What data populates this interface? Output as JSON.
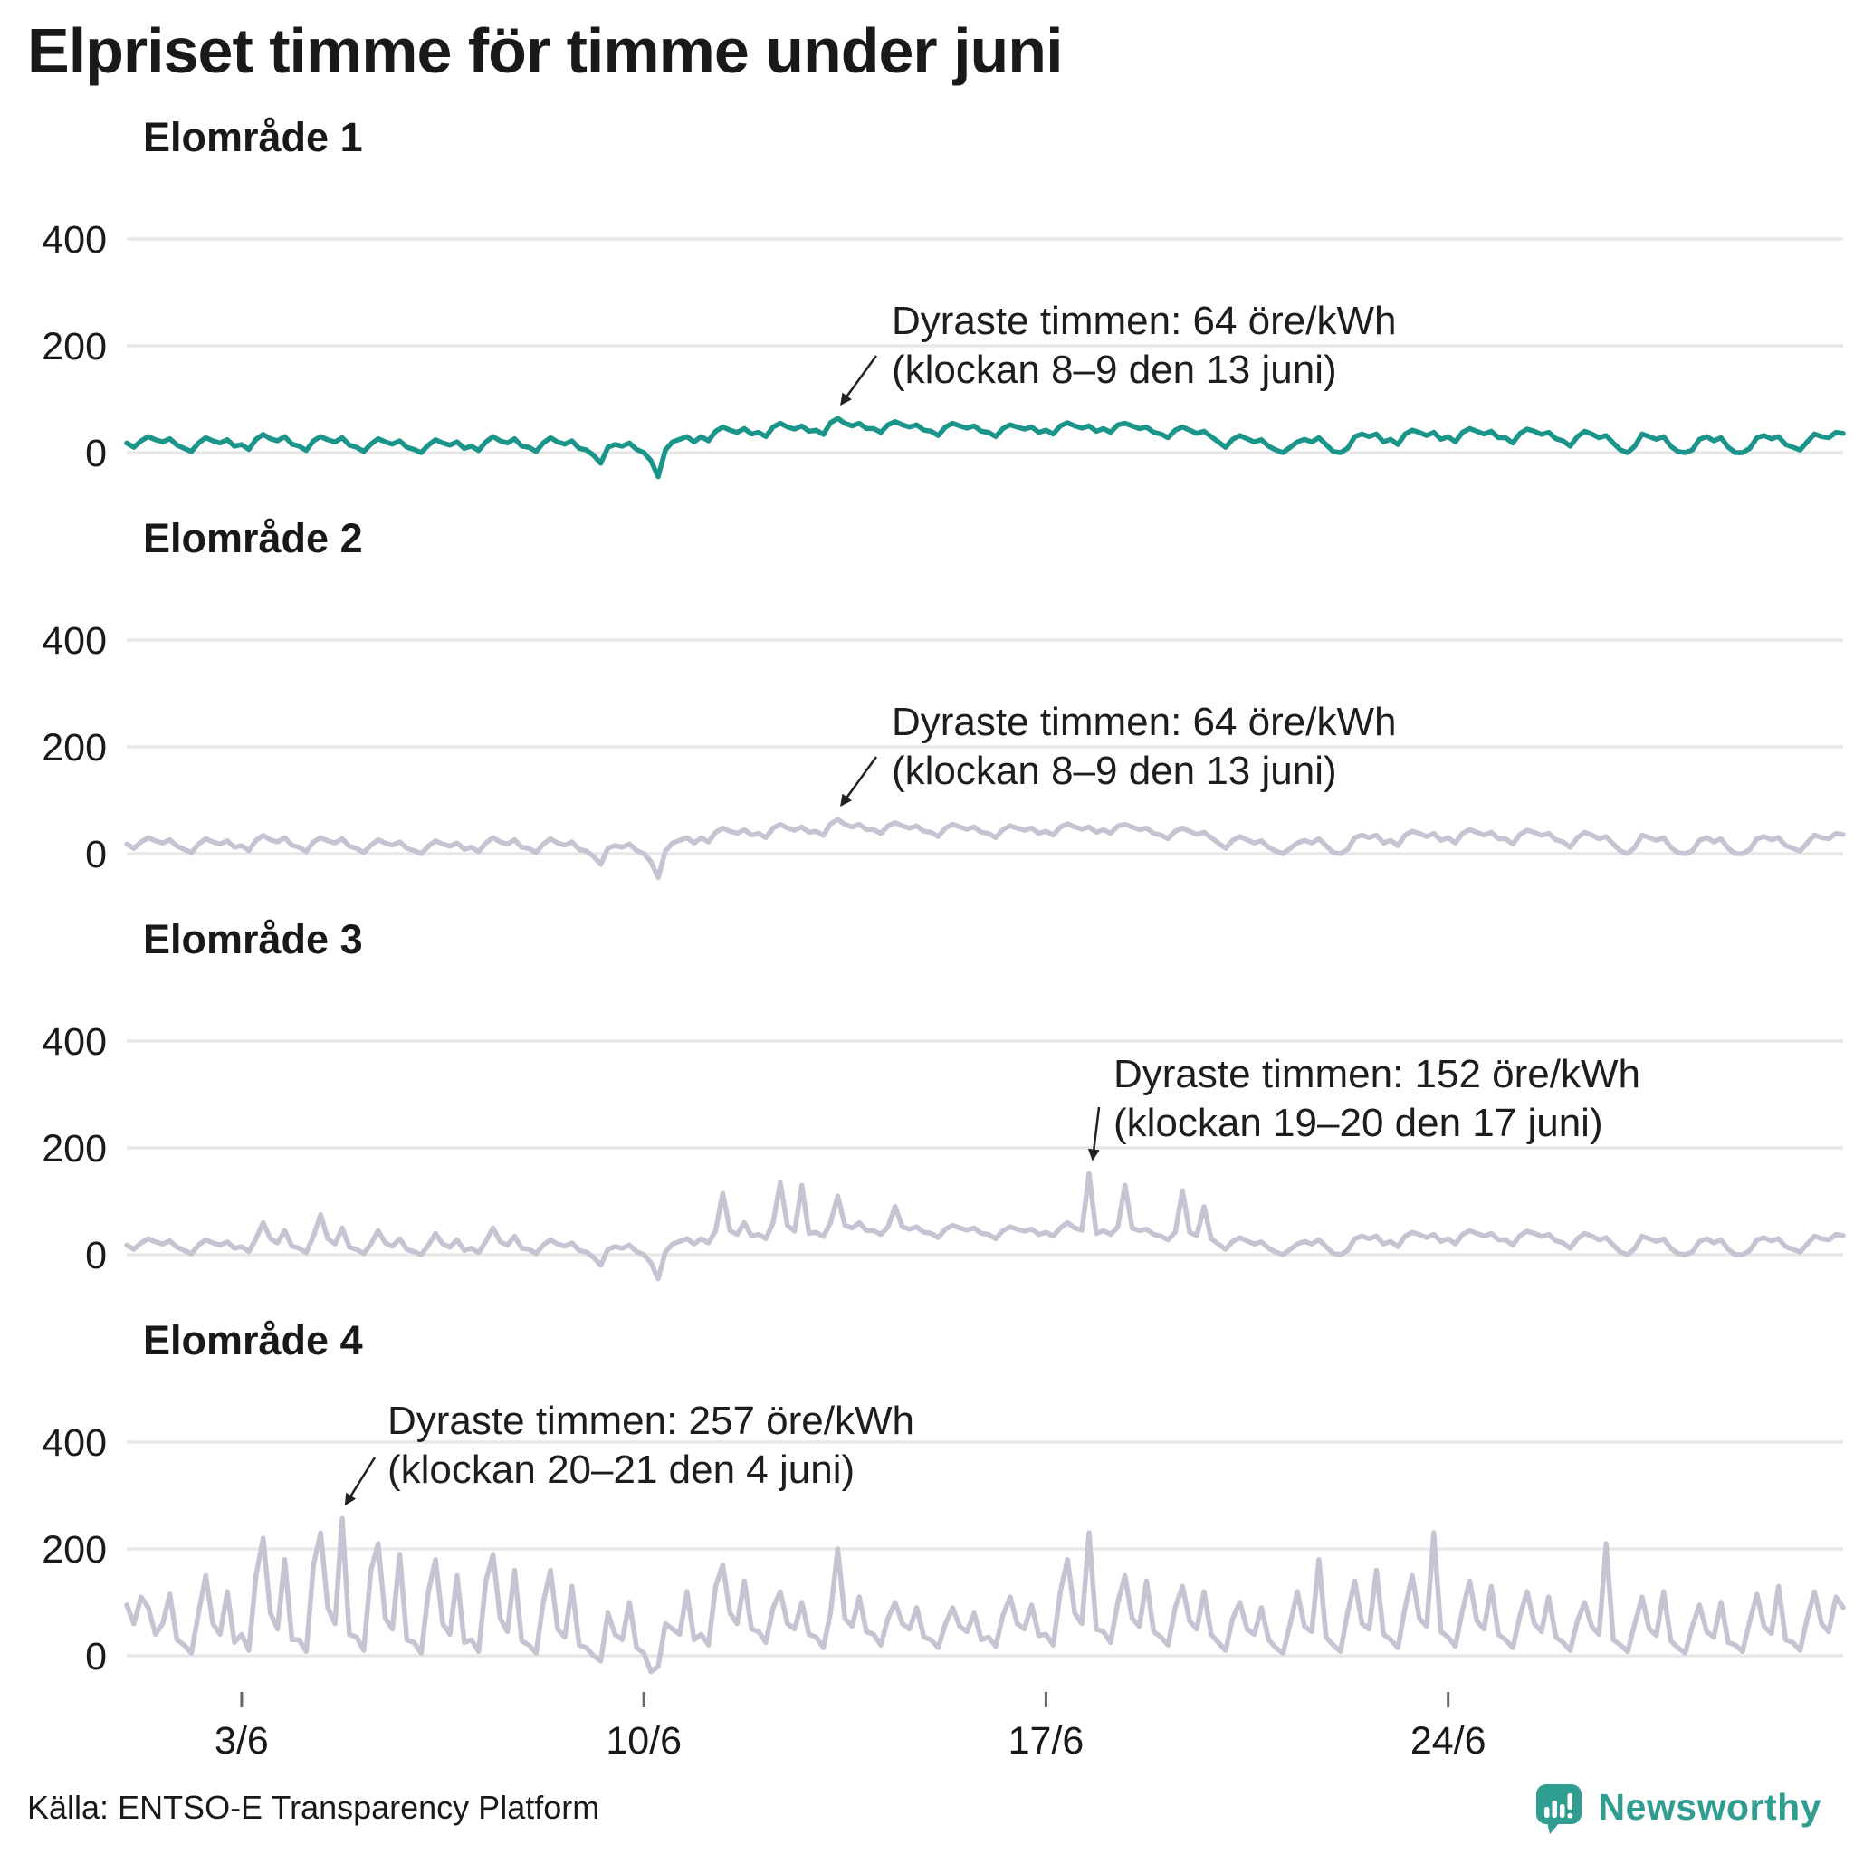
{
  "title": "Elpriset timme för timme under juni",
  "footer": {
    "source": "Källa: ENTSO-E Transparency Platform",
    "brand": "Newsworthy"
  },
  "colors": {
    "area1_line": "#1b948a",
    "other_line": "#c6c4d3",
    "grid": "#e8e8e8",
    "text": "#191919",
    "annotation": "#1d1d1d",
    "arrow": "#222222",
    "brand_teal": "#2f9d90",
    "tick": "#666666"
  },
  "chart_data": [
    {
      "type": "line",
      "title": "Elområde 1",
      "unit": "öre/kWh",
      "x_range": "1 juni – 30 juni, timvärden",
      "points_per_day": 8,
      "yticks": [
        "400",
        "200",
        "0"
      ],
      "ylim": [
        -60,
        460
      ],
      "xticks": [
        {
          "label": "3/6",
          "day": 3
        },
        {
          "label": "10/6",
          "day": 10
        },
        {
          "label": "17/6",
          "day": 17
        },
        {
          "label": "24/6",
          "day": 24
        }
      ],
      "annotation": {
        "line1": "Dyraste timmen: 64 öre/kWh",
        "line2": "(klockan 8–9 den 13 juni)",
        "max_value": 64
      },
      "values": [
        18,
        10,
        22,
        30,
        24,
        20,
        26,
        14,
        8,
        2,
        18,
        28,
        22,
        18,
        24,
        12,
        15,
        6,
        25,
        34,
        26,
        22,
        30,
        16,
        12,
        4,
        22,
        30,
        24,
        20,
        28,
        14,
        10,
        2,
        16,
        26,
        20,
        16,
        22,
        10,
        6,
        0,
        14,
        24,
        18,
        14,
        20,
        8,
        12,
        4,
        20,
        30,
        22,
        18,
        26,
        12,
        10,
        2,
        18,
        28,
        20,
        16,
        22,
        8,
        5,
        -5,
        -20,
        10,
        15,
        12,
        18,
        6,
        0,
        -15,
        -45,
        5,
        20,
        25,
        30,
        20,
        30,
        22,
        40,
        48,
        42,
        38,
        45,
        35,
        38,
        30,
        48,
        55,
        48,
        44,
        50,
        40,
        42,
        34,
        56,
        64,
        55,
        50,
        55,
        45,
        45,
        38,
        52,
        58,
        52,
        48,
        52,
        42,
        40,
        32,
        48,
        55,
        50,
        46,
        50,
        40,
        38,
        30,
        45,
        52,
        48,
        44,
        48,
        38,
        42,
        35,
        50,
        56,
        50,
        46,
        50,
        40,
        45,
        38,
        52,
        55,
        50,
        45,
        48,
        38,
        35,
        28,
        42,
        48,
        42,
        36,
        40,
        30,
        20,
        10,
        25,
        32,
        26,
        20,
        24,
        12,
        5,
        0,
        10,
        20,
        25,
        20,
        28,
        15,
        2,
        0,
        8,
        30,
        35,
        30,
        35,
        20,
        25,
        15,
        35,
        42,
        38,
        32,
        38,
        25,
        30,
        20,
        38,
        45,
        40,
        35,
        40,
        28,
        28,
        18,
        36,
        44,
        40,
        34,
        38,
        26,
        22,
        12,
        30,
        40,
        35,
        28,
        32,
        18,
        5,
        0,
        12,
        35,
        30,
        25,
        30,
        12,
        2,
        0,
        5,
        25,
        30,
        22,
        28,
        10,
        0,
        0,
        8,
        28,
        32,
        26,
        30,
        15,
        10,
        5,
        20,
        35,
        30,
        28,
        38,
        36
      ]
    },
    {
      "type": "line",
      "title": "Elområde 2",
      "unit": "öre/kWh",
      "x_range": "1 juni – 30 juni, timvärden",
      "points_per_day": 8,
      "yticks": [
        "400",
        "200",
        "0"
      ],
      "ylim": [
        -60,
        460
      ],
      "xticks": [
        {
          "label": "3/6",
          "day": 3
        },
        {
          "label": "10/6",
          "day": 10
        },
        {
          "label": "17/6",
          "day": 17
        },
        {
          "label": "24/6",
          "day": 24
        }
      ],
      "annotation": {
        "line1": "Dyraste timmen: 64 öre/kWh",
        "line2": "(klockan 8–9 den 13 juni)",
        "max_value": 64
      },
      "values": [
        18,
        10,
        22,
        30,
        24,
        20,
        26,
        14,
        8,
        2,
        18,
        28,
        22,
        18,
        24,
        12,
        15,
        6,
        25,
        34,
        26,
        22,
        30,
        16,
        12,
        4,
        22,
        30,
        24,
        20,
        28,
        14,
        10,
        2,
        16,
        26,
        20,
        16,
        22,
        10,
        6,
        0,
        14,
        24,
        18,
        14,
        20,
        8,
        12,
        4,
        20,
        30,
        22,
        18,
        26,
        12,
        10,
        2,
        18,
        28,
        20,
        16,
        22,
        8,
        5,
        -5,
        -20,
        10,
        15,
        12,
        18,
        6,
        0,
        -15,
        -45,
        5,
        20,
        25,
        30,
        20,
        30,
        22,
        40,
        48,
        42,
        38,
        45,
        35,
        38,
        30,
        48,
        55,
        48,
        44,
        50,
        40,
        42,
        34,
        56,
        64,
        55,
        50,
        55,
        45,
        45,
        38,
        52,
        58,
        52,
        48,
        52,
        42,
        40,
        32,
        48,
        55,
        50,
        46,
        50,
        40,
        38,
        30,
        45,
        52,
        48,
        44,
        48,
        38,
        42,
        35,
        50,
        56,
        50,
        46,
        50,
        40,
        45,
        38,
        52,
        55,
        50,
        45,
        48,
        38,
        35,
        28,
        42,
        48,
        42,
        36,
        40,
        30,
        20,
        10,
        25,
        32,
        26,
        20,
        24,
        12,
        5,
        0,
        10,
        20,
        25,
        20,
        28,
        15,
        2,
        0,
        8,
        30,
        35,
        30,
        35,
        20,
        25,
        15,
        35,
        42,
        38,
        32,
        38,
        25,
        30,
        20,
        38,
        45,
        40,
        35,
        40,
        28,
        28,
        18,
        36,
        44,
        40,
        34,
        38,
        26,
        22,
        12,
        30,
        40,
        35,
        28,
        32,
        18,
        5,
        0,
        12,
        35,
        30,
        25,
        30,
        12,
        2,
        0,
        5,
        25,
        30,
        22,
        28,
        10,
        0,
        0,
        8,
        28,
        32,
        26,
        30,
        15,
        10,
        5,
        20,
        35,
        30,
        28,
        38,
        36
      ]
    },
    {
      "type": "line",
      "title": "Elområde 3",
      "unit": "öre/kWh",
      "x_range": "1 juni – 30 juni, timvärden",
      "points_per_day": 8,
      "yticks": [
        "400",
        "200",
        "0"
      ],
      "ylim": [
        -60,
        460
      ],
      "xticks": [
        {
          "label": "3/6",
          "day": 3
        },
        {
          "label": "10/6",
          "day": 10
        },
        {
          "label": "17/6",
          "day": 17
        },
        {
          "label": "24/6",
          "day": 24
        }
      ],
      "annotation": {
        "line1": "Dyraste timmen: 152 öre/kWh",
        "line2": "(klockan 19–20 den 17 juni)",
        "max_value": 152
      },
      "values": [
        18,
        10,
        22,
        30,
        24,
        20,
        26,
        14,
        8,
        2,
        18,
        28,
        22,
        18,
        24,
        12,
        15,
        6,
        30,
        60,
        30,
        22,
        45,
        16,
        12,
        4,
        35,
        75,
        30,
        20,
        50,
        14,
        10,
        2,
        20,
        45,
        22,
        16,
        30,
        10,
        6,
        0,
        18,
        40,
        20,
        14,
        28,
        8,
        12,
        4,
        25,
        50,
        24,
        18,
        35,
        12,
        10,
        2,
        18,
        28,
        20,
        16,
        22,
        8,
        5,
        -5,
        -20,
        10,
        15,
        12,
        18,
        6,
        0,
        -15,
        -45,
        5,
        20,
        25,
        30,
        20,
        30,
        22,
        45,
        115,
        45,
        38,
        60,
        35,
        38,
        30,
        60,
        135,
        55,
        44,
        130,
        40,
        42,
        34,
        60,
        110,
        55,
        50,
        60,
        45,
        45,
        38,
        52,
        90,
        52,
        48,
        52,
        42,
        40,
        32,
        48,
        55,
        50,
        46,
        50,
        40,
        38,
        30,
        45,
        52,
        48,
        44,
        48,
        38,
        42,
        35,
        50,
        60,
        50,
        46,
        152,
        40,
        45,
        38,
        52,
        130,
        50,
        45,
        48,
        38,
        35,
        28,
        42,
        120,
        42,
        36,
        90,
        30,
        20,
        10,
        25,
        32,
        26,
        20,
        24,
        12,
        5,
        0,
        10,
        20,
        25,
        20,
        28,
        15,
        2,
        0,
        8,
        30,
        35,
        30,
        35,
        20,
        25,
        15,
        35,
        42,
        38,
        32,
        38,
        25,
        30,
        20,
        38,
        45,
        40,
        35,
        40,
        28,
        28,
        18,
        36,
        44,
        40,
        34,
        38,
        26,
        22,
        12,
        30,
        40,
        35,
        28,
        32,
        18,
        5,
        0,
        12,
        35,
        30,
        25,
        30,
        12,
        2,
        0,
        5,
        25,
        30,
        22,
        28,
        10,
        0,
        0,
        8,
        28,
        32,
        26,
        30,
        15,
        10,
        5,
        20,
        35,
        30,
        28,
        38,
        36
      ]
    },
    {
      "type": "line",
      "title": "Elområde 4",
      "unit": "öre/kWh",
      "x_range": "1 juni – 30 juni, timvärden",
      "points_per_day": 8,
      "yticks": [
        "400",
        "200",
        "0"
      ],
      "ylim": [
        -60,
        460
      ],
      "xticks": [
        {
          "label": "3/6",
          "day": 3
        },
        {
          "label": "10/6",
          "day": 10
        },
        {
          "label": "17/6",
          "day": 17
        },
        {
          "label": "24/6",
          "day": 24
        }
      ],
      "annotation": {
        "line1": "Dyraste timmen: 257 öre/kWh",
        "line2": "(klockan 20–21 den 4 juni)",
        "max_value": 257
      },
      "values": [
        95,
        60,
        110,
        90,
        40,
        60,
        115,
        30,
        20,
        5,
        80,
        150,
        60,
        40,
        120,
        25,
        40,
        10,
        150,
        220,
        80,
        50,
        180,
        30,
        30,
        8,
        170,
        230,
        90,
        60,
        257,
        40,
        35,
        10,
        160,
        210,
        70,
        50,
        190,
        30,
        25,
        5,
        120,
        180,
        60,
        40,
        150,
        25,
        30,
        8,
        140,
        190,
        70,
        45,
        160,
        28,
        20,
        5,
        100,
        160,
        50,
        35,
        130,
        20,
        15,
        0,
        -10,
        80,
        40,
        30,
        100,
        15,
        5,
        -30,
        -20,
        60,
        50,
        40,
        120,
        30,
        40,
        20,
        130,
        170,
        80,
        60,
        140,
        50,
        45,
        25,
        90,
        120,
        60,
        50,
        100,
        40,
        35,
        15,
        80,
        200,
        70,
        55,
        110,
        45,
        40,
        20,
        70,
        100,
        60,
        50,
        90,
        35,
        30,
        15,
        60,
        90,
        55,
        45,
        80,
        30,
        35,
        18,
        75,
        110,
        60,
        50,
        95,
        38,
        40,
        20,
        120,
        180,
        80,
        60,
        230,
        50,
        45,
        25,
        100,
        150,
        70,
        55,
        140,
        45,
        35,
        20,
        90,
        130,
        65,
        50,
        120,
        40,
        25,
        10,
        70,
        100,
        50,
        40,
        90,
        30,
        15,
        5,
        60,
        120,
        55,
        45,
        180,
        35,
        20,
        8,
        80,
        140,
        60,
        50,
        160,
        40,
        30,
        15,
        90,
        150,
        70,
        55,
        230,
        45,
        35,
        18,
        85,
        140,
        65,
        50,
        130,
        40,
        30,
        15,
        75,
        120,
        60,
        45,
        110,
        35,
        25,
        10,
        65,
        100,
        55,
        40,
        210,
        30,
        20,
        8,
        60,
        110,
        50,
        38,
        120,
        28,
        15,
        5,
        55,
        95,
        45,
        35,
        100,
        25,
        20,
        8,
        65,
        115,
        55,
        42,
        130,
        30,
        25,
        10,
        70,
        120,
        60,
        45,
        110,
        90
      ]
    }
  ]
}
